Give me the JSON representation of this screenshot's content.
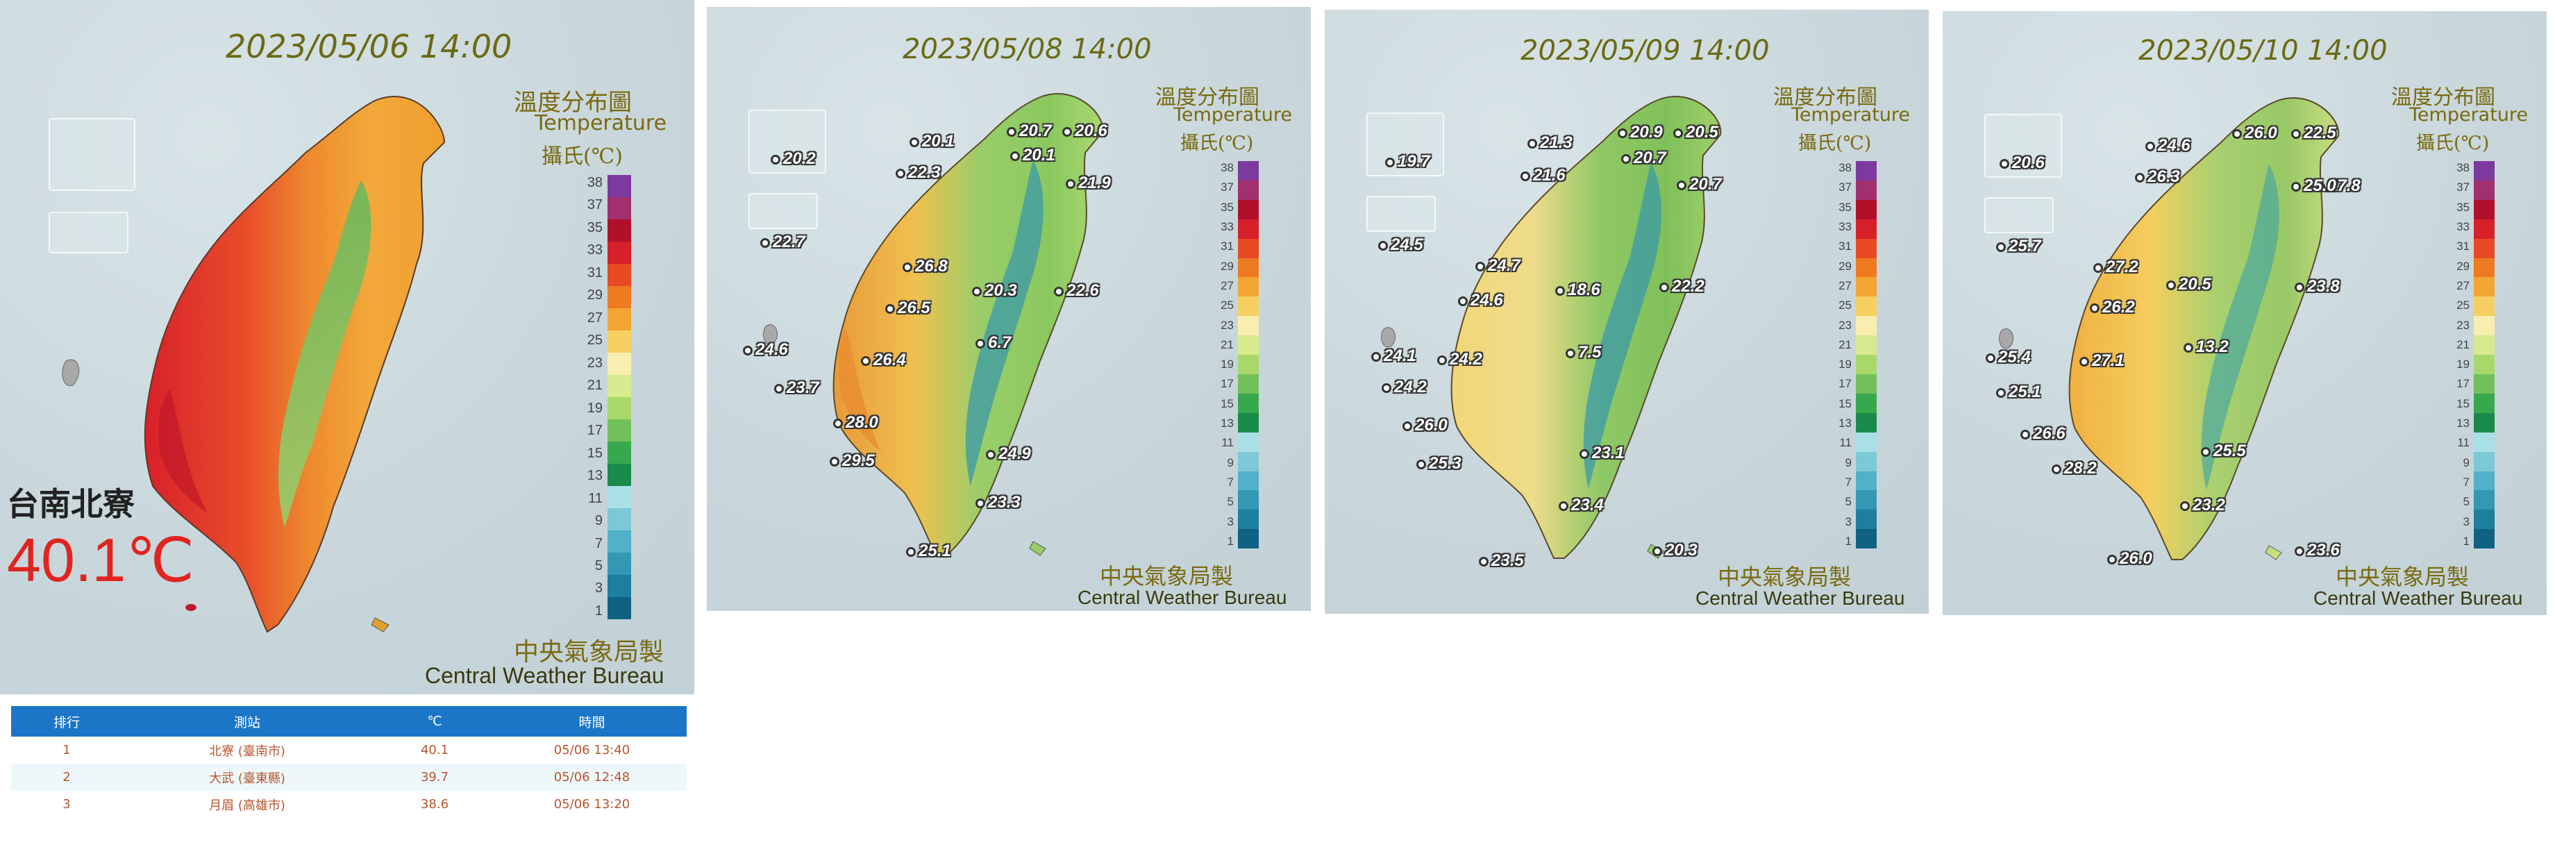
{
  "panels": [
    {
      "title": "2023/05/06 14:00",
      "legend": {
        "title_zh": "溫度分布圖",
        "title_en": "Temperature",
        "unit": "攝氏(℃)"
      },
      "credit": {
        "zh": "中央氣象局製",
        "en": "Central Weather Bureau"
      },
      "stations": [],
      "callout": {
        "station": "台南北寮",
        "value": "40.1℃"
      }
    },
    {
      "title": "2023/05/08 14:00",
      "legend": {
        "title_zh": "溫度分布圖",
        "title_en": "Temperature",
        "unit": "攝氏(℃)"
      },
      "credit": {
        "zh": "中央氣象局製",
        "en": "Central Weather Bureau"
      },
      "stations": [
        "20.2",
        "22.7",
        "20.1",
        "22.3",
        "20.7",
        "20.6",
        "20.1",
        "21.9",
        "26.8",
        "20.3",
        "22.6",
        "26.5",
        "26.4",
        "6.7",
        "24.6",
        "23.7",
        "28.0",
        "29.5",
        "24.9",
        "23.3",
        "25.1"
      ]
    },
    {
      "title": "2023/05/09 14:00",
      "legend": {
        "title_zh": "溫度分布圖",
        "title_en": "Temperature",
        "unit": "攝氏(℃)"
      },
      "credit": {
        "zh": "中央氣象局製",
        "en": "Central Weather Bureau"
      },
      "stations": [
        "19.7",
        "24.5",
        "21.3",
        "21.6",
        "20.9",
        "20.5",
        "20.7",
        "20.7",
        "24.7",
        "18.6",
        "22.2",
        "24.6",
        "24.2",
        "7.5",
        "24.1",
        "24.2",
        "26.0",
        "25.3",
        "23.1",
        "23.4",
        "20.3",
        "23.5"
      ]
    },
    {
      "title": "2023/05/10 14:00",
      "legend": {
        "title_zh": "溫度分布圖",
        "title_en": "Temperature",
        "unit": "攝氏(℃)"
      },
      "credit": {
        "zh": "中央氣象局製",
        "en": "Central Weather Bureau"
      },
      "stations": [
        "20.6",
        "25.7",
        "24.6",
        "26.3",
        "26.0",
        "22.5",
        "27.8",
        "25.0",
        "27.2",
        "20.5",
        "23.8",
        "26.2",
        "27.1",
        "13.2",
        "25.4",
        "25.1",
        "26.6",
        "28.2",
        "25.5",
        "23.2",
        "23.6",
        "26.0"
      ]
    }
  ],
  "scale": {
    "labels": [
      "38",
      "37",
      "35",
      "33",
      "31",
      "29",
      "27",
      "25",
      "23",
      "21",
      "19",
      "17",
      "15",
      "13",
      "11",
      "9",
      "7",
      "5",
      "3",
      "1"
    ],
    "colors": [
      "#7d3a9e",
      "#a0306e",
      "#b0102a",
      "#d6202a",
      "#e84a24",
      "#ee7a22",
      "#f3a533",
      "#f6cf62",
      "#f8eeb0",
      "#d8ea8e",
      "#a9d86a",
      "#73c05a",
      "#38a84e",
      "#1a8a4a",
      "#a8e0e6",
      "#7cc8d6",
      "#52b0c8",
      "#3497b4",
      "#1d7e9e",
      "#0f6283"
    ]
  },
  "ranking": {
    "headers": [
      "排行",
      "測站",
      "℃",
      "時間"
    ],
    "rows": [
      [
        "1",
        "北寮 (臺南市)",
        "40.1",
        "05/06 13:40"
      ],
      [
        "2",
        "大武 (臺東縣)",
        "39.7",
        "05/06 12:48"
      ],
      [
        "3",
        "月眉 (高雄市)",
        "38.6",
        "05/06 13:20"
      ]
    ]
  }
}
